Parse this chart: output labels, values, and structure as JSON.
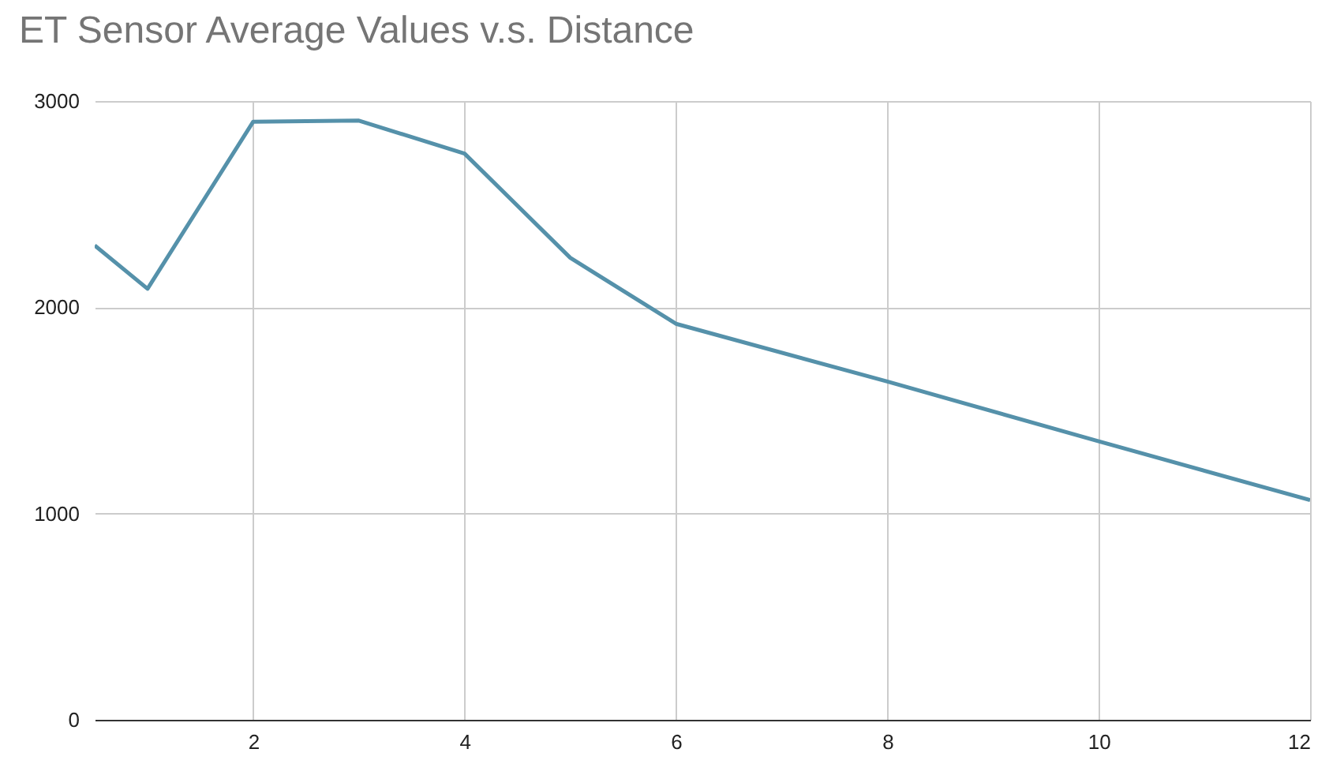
{
  "chart_data": {
    "type": "line",
    "title": "ET Sensor Average Values v.s. Distance",
    "x": [
      0.5,
      1,
      2,
      3,
      4,
      5,
      6,
      8,
      10,
      12
    ],
    "series": [
      {
        "color": "#5591aa",
        "values": [
          2300,
          2090,
          2900,
          2905,
          2745,
          2240,
          1920,
          1640,
          1350,
          1065
        ]
      }
    ],
    "xlim": [
      0.5,
      12
    ],
    "xticks": [
      2,
      4,
      6,
      8,
      10,
      12
    ],
    "ylim": [
      0,
      3000
    ],
    "yticks": [
      0,
      1000,
      2000,
      3000
    ],
    "grid": true,
    "marker": "none",
    "line_style": "solid"
  }
}
